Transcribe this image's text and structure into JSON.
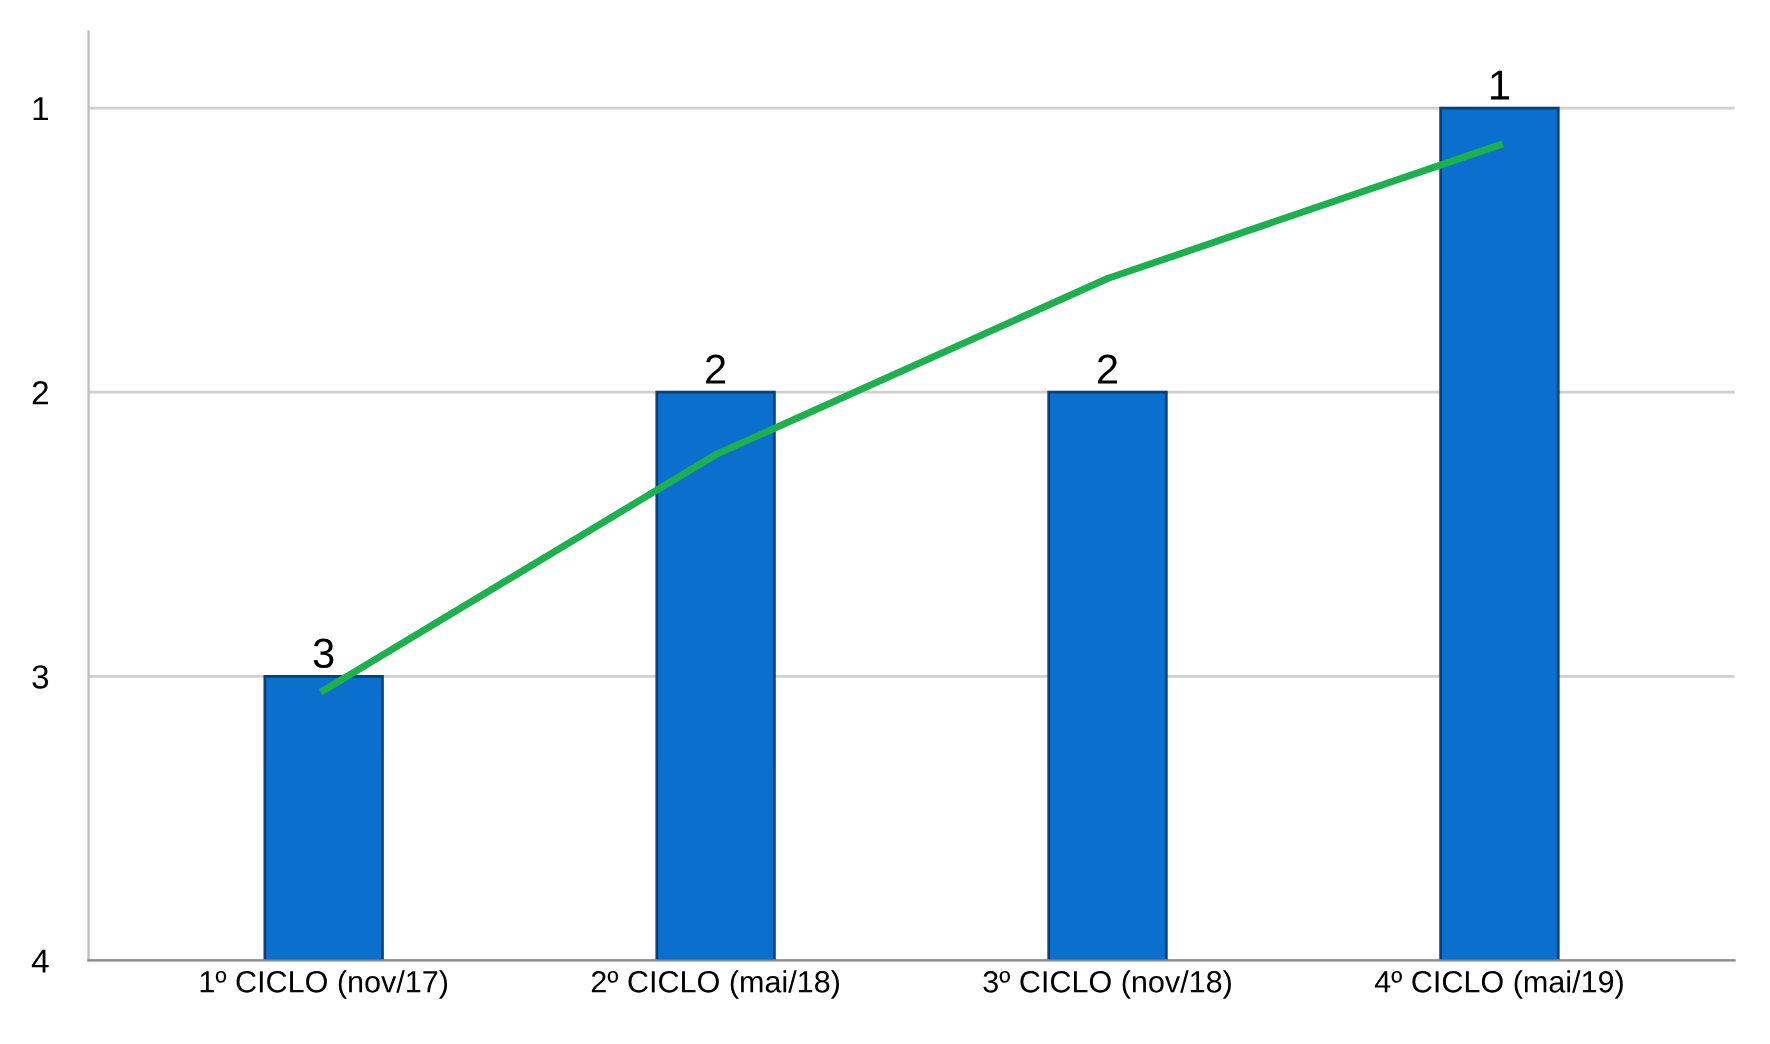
{
  "chart_data": {
    "type": "bar",
    "categories": [
      "1º CICLO (nov/17)",
      "2º CICLO (mai/18)",
      "3º CICLO (nov/18)",
      "4º CICLO (mai/19)"
    ],
    "series": [
      {
        "color": "#0b6fce",
        "base": [
          4,
          4,
          4,
          4
        ],
        "values": [
          -1,
          -2,
          -2,
          -3
        ],
        "value_labels": [
          "3",
          "2",
          "2",
          "1"
        ]
      },
      {
        "type": "line",
        "color": "#1db04f",
        "values": [
          3.05,
          2.22,
          1.6,
          1.13
        ],
        "line_style": "solid",
        "marker": "none"
      }
    ],
    "ylim": [
      4,
      0.73
    ],
    "yticks": [
      1,
      2,
      3,
      4
    ],
    "grid": "y",
    "legend": false
  }
}
